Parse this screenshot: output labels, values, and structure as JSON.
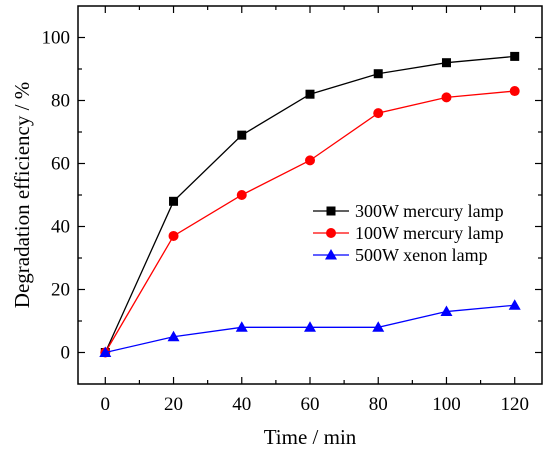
{
  "chart_data": {
    "type": "line",
    "title": "",
    "xlabel": "Time / min",
    "ylabel": "Degradation efficiency / %",
    "xlim": [
      -8,
      128
    ],
    "ylim": [
      -10,
      110
    ],
    "x_ticks": [
      0,
      20,
      40,
      60,
      80,
      100,
      120
    ],
    "y_ticks": [
      0,
      20,
      40,
      60,
      80,
      100
    ],
    "grid": false,
    "legend_position": "center-right",
    "series": [
      {
        "name": "300W mercury lamp",
        "color": "#000000",
        "marker": "square",
        "x": [
          0,
          20,
          40,
          60,
          80,
          100,
          120
        ],
        "y": [
          0,
          48,
          69,
          82,
          88.5,
          92,
          94
        ]
      },
      {
        "name": "100W mercury lamp",
        "color": "#ff0000",
        "marker": "circle",
        "x": [
          0,
          20,
          40,
          60,
          80,
          100,
          120
        ],
        "y": [
          0,
          37,
          50,
          61,
          76,
          81,
          83
        ]
      },
      {
        "name": "500W xenon lamp",
        "color": "#0000ff",
        "marker": "triangle",
        "x": [
          0,
          20,
          40,
          60,
          80,
          100,
          120
        ],
        "y": [
          0,
          5,
          8,
          8,
          8,
          13,
          15
        ]
      }
    ]
  }
}
